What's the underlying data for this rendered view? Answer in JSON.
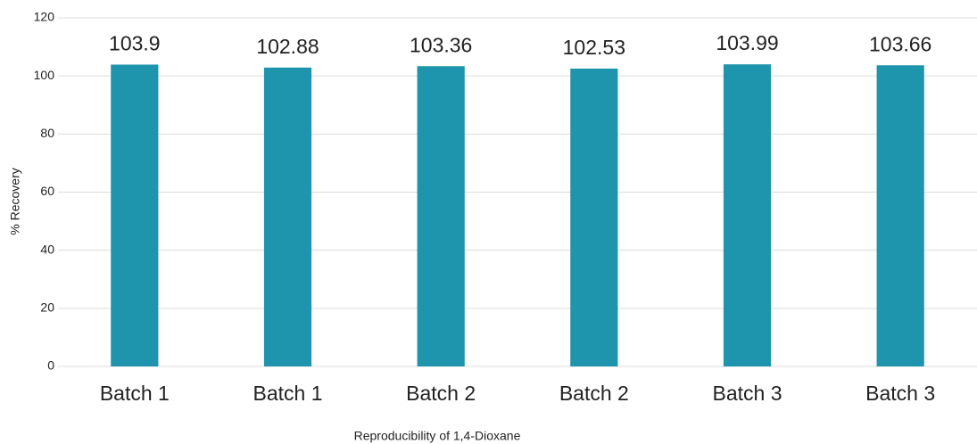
{
  "chart_data": {
    "type": "bar",
    "x_label": "Reproducibility of 1,4-Dioxane",
    "y_label": "% Recovery",
    "categories": [
      "Batch 1",
      "Batch 1",
      "Batch 2",
      "Batch 2",
      "Batch 3",
      "Batch 3"
    ],
    "values": [
      103.9,
      102.88,
      103.36,
      102.53,
      103.99,
      103.66
    ],
    "color": "#1f95ad",
    "ylim": [
      0,
      120
    ],
    "yticks": [
      0,
      20,
      40,
      60,
      80,
      100,
      120
    ],
    "grid": true
  }
}
